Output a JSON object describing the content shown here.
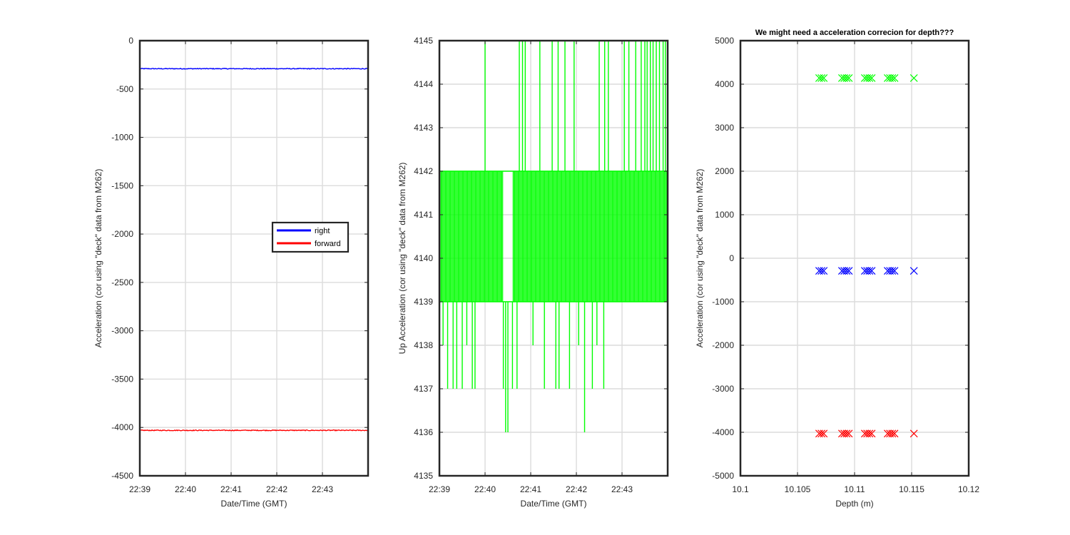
{
  "chart_data": [
    {
      "type": "line",
      "title": "",
      "xlabel": "Date/Time (GMT)",
      "ylabel": "Acceleration (cor using \"deck\" data from M262)",
      "x_ticks": [
        "22:39",
        "22:40",
        "22:41",
        "22:42",
        "22:43"
      ],
      "x_tick_minutes": [
        0,
        1,
        2,
        3,
        4
      ],
      "xlim_minutes": [
        0,
        5
      ],
      "ylim": [
        -4500,
        0
      ],
      "y_ticks": [
        "0",
        "-500",
        "-1000",
        "-1500",
        "-2000",
        "-2500",
        "-3000",
        "-3500",
        "-4000",
        "-4500"
      ],
      "y_tick_values": [
        0,
        -500,
        -1000,
        -1500,
        -2000,
        -2500,
        -3000,
        -3500,
        -4000,
        -4500
      ],
      "grid": true,
      "legend": {
        "placement": "center-right"
      },
      "series": [
        {
          "name": "right",
          "color": "#0000ff",
          "approx_value": -290,
          "noise": 4
        },
        {
          "name": "forward",
          "color": "#ff0000",
          "approx_value": -4030,
          "noise": 4
        }
      ]
    },
    {
      "type": "line",
      "title": "",
      "xlabel": "Date/Time (GMT)",
      "ylabel": "Up Acceleration (cor using \"deck\" data from M262)",
      "x_ticks": [
        "22:39",
        "22:40",
        "22:41",
        "22:42",
        "22:43"
      ],
      "x_tick_minutes": [
        0,
        1,
        2,
        3,
        4
      ],
      "xlim_minutes": [
        0,
        5
      ],
      "ylim": [
        4135,
        4145
      ],
      "y_ticks": [
        "4145",
        "4144",
        "4143",
        "4142",
        "4141",
        "4140",
        "4139",
        "4138",
        "4137",
        "4136",
        "4135"
      ],
      "y_tick_values": [
        4145,
        4144,
        4143,
        4142,
        4141,
        4140,
        4139,
        4138,
        4137,
        4136,
        4135
      ],
      "grid": true,
      "series": [
        {
          "name": "",
          "color": "#00ff00",
          "main_band": [
            4139,
            4142
          ],
          "band_gaps_minutes": [
            [
              1.4,
              1.6
            ]
          ],
          "spikes_high": [
            [
              1.0,
              4145
            ],
            [
              1.75,
              4145
            ],
            [
              1.82,
              4145
            ],
            [
              1.88,
              4145
            ],
            [
              2.2,
              4145
            ],
            [
              2.47,
              4145
            ],
            [
              2.6,
              4145
            ],
            [
              2.75,
              4145
            ],
            [
              2.95,
              4145
            ],
            [
              3.5,
              4145
            ],
            [
              3.62,
              4145
            ],
            [
              3.7,
              4145
            ],
            [
              4.05,
              4145
            ],
            [
              4.15,
              4145
            ],
            [
              4.3,
              4145
            ],
            [
              4.42,
              4145
            ],
            [
              4.5,
              4145
            ],
            [
              4.55,
              4145
            ],
            [
              4.62,
              4145
            ],
            [
              4.68,
              4145
            ],
            [
              4.75,
              4145
            ],
            [
              4.82,
              4145
            ],
            [
              4.9,
              4145
            ],
            [
              4.95,
              4145
            ]
          ],
          "spikes_low": [
            [
              0.08,
              4138
            ],
            [
              0.18,
              4137
            ],
            [
              0.3,
              4137
            ],
            [
              0.38,
              4137
            ],
            [
              0.5,
              4137
            ],
            [
              0.6,
              4138
            ],
            [
              0.72,
              4137
            ],
            [
              0.78,
              4137
            ],
            [
              1.4,
              4137
            ],
            [
              1.45,
              4136
            ],
            [
              1.5,
              4136
            ],
            [
              1.6,
              4137
            ],
            [
              1.7,
              4137
            ],
            [
              2.05,
              4138
            ],
            [
              2.3,
              4137
            ],
            [
              2.55,
              4137
            ],
            [
              2.62,
              4137
            ],
            [
              2.85,
              4137
            ],
            [
              3.05,
              4138
            ],
            [
              3.18,
              4136
            ],
            [
              3.35,
              4137
            ],
            [
              3.45,
              4138
            ],
            [
              3.6,
              4137
            ]
          ]
        }
      ]
    },
    {
      "type": "scatter",
      "title": "We might need a acceleration correcion for depth???",
      "xlabel": "Depth (m)",
      "ylabel": "Acceleration (cor using \"deck\" data from M262)",
      "x_ticks": [
        "10.1",
        "10.105",
        "10.11",
        "10.115",
        "10.12"
      ],
      "x_tick_values": [
        10.1,
        10.105,
        10.11,
        10.115,
        10.12
      ],
      "xlim": [
        10.1,
        10.12
      ],
      "ylim": [
        -5000,
        5000
      ],
      "y_ticks": [
        "5000",
        "4000",
        "3000",
        "2000",
        "1000",
        "0",
        "-1000",
        "-2000",
        "-3000",
        "-4000",
        "-5000"
      ],
      "y_tick_values": [
        5000,
        4000,
        3000,
        2000,
        1000,
        0,
        -1000,
        -2000,
        -3000,
        -4000,
        -5000
      ],
      "grid": true,
      "marker": "x",
      "series": [
        {
          "name": "",
          "color": "#00ff00",
          "y": 4140,
          "x": [
            10.1069,
            10.1071,
            10.1073,
            10.1089,
            10.1091,
            10.1093,
            10.1095,
            10.1109,
            10.1111,
            10.1113,
            10.1115,
            10.1129,
            10.1131,
            10.1133,
            10.1135,
            10.1152
          ]
        },
        {
          "name": "",
          "color": "#0000ff",
          "y": -290,
          "x": [
            10.1069,
            10.1071,
            10.1073,
            10.1089,
            10.1091,
            10.1093,
            10.1095,
            10.1109,
            10.1111,
            10.1113,
            10.1115,
            10.1129,
            10.1131,
            10.1133,
            10.1135,
            10.1152
          ]
        },
        {
          "name": "",
          "color": "#ff0000",
          "y": -4030,
          "x": [
            10.1069,
            10.1071,
            10.1073,
            10.1089,
            10.1091,
            10.1093,
            10.1095,
            10.1109,
            10.1111,
            10.1113,
            10.1115,
            10.1129,
            10.1131,
            10.1133,
            10.1135,
            10.1152
          ]
        }
      ]
    }
  ]
}
